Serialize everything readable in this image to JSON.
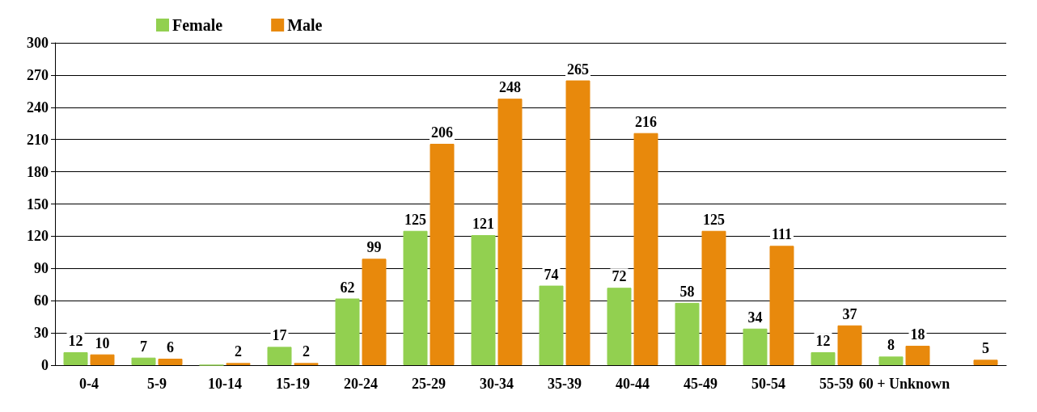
{
  "chart_data": {
    "type": "bar",
    "categories": [
      "0-4",
      "5-9",
      "10-14",
      "15-19",
      "20-24",
      "25-29",
      "30-34",
      "35-39",
      "40-44",
      "45-49",
      "50-54",
      "55-59",
      "60 + Unknown",
      null
    ],
    "series": [
      {
        "name": "Female",
        "color": "#92d050",
        "values": [
          12,
          7,
          0,
          17,
          62,
          125,
          121,
          74,
          72,
          58,
          34,
          12,
          8,
          null
        ],
        "value_labels": [
          "12",
          "7",
          null,
          "17",
          "62",
          "125",
          "121",
          "74",
          "72",
          "58",
          "34",
          "12",
          "8",
          null
        ]
      },
      {
        "name": "Male",
        "color": "#e8890c",
        "values": [
          10,
          6,
          2,
          2,
          99,
          206,
          248,
          265,
          216,
          125,
          111,
          37,
          18,
          5
        ],
        "value_labels": [
          "10",
          "6",
          "2",
          "2",
          "99",
          "206",
          "248",
          "265",
          "216",
          "125",
          "111",
          "37",
          "18",
          "5"
        ]
      }
    ],
    "ylim": [
      0,
      300
    ],
    "yticks": [
      0,
      30,
      60,
      90,
      120,
      150,
      180,
      210,
      240,
      270,
      300
    ],
    "grid": "y",
    "legend": "top left"
  }
}
